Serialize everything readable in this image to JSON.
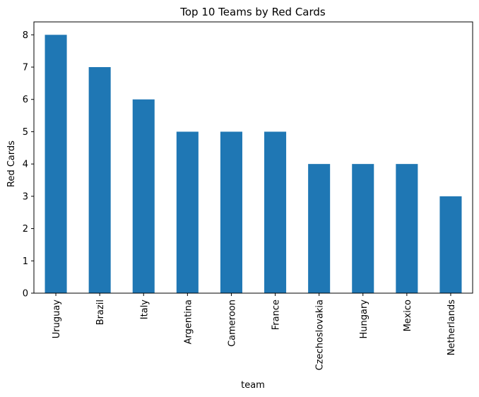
{
  "chart_data": {
    "type": "bar",
    "title": "Top 10 Teams by Red Cards",
    "xlabel": "team",
    "ylabel": "Red Cards",
    "categories": [
      "Uruguay",
      "Brazil",
      "Italy",
      "Argentina",
      "Cameroon",
      "France",
      "Czechoslovakia",
      "Hungary",
      "Mexico",
      "Netherlands"
    ],
    "values": [
      8,
      7,
      6,
      5,
      5,
      5,
      4,
      4,
      4,
      3
    ],
    "ylim": [
      0,
      8.4
    ],
    "yticks": [
      0,
      1,
      2,
      3,
      4,
      5,
      6,
      7,
      8
    ],
    "bar_color": "#1f77b4",
    "grid": false,
    "legend": "none"
  }
}
